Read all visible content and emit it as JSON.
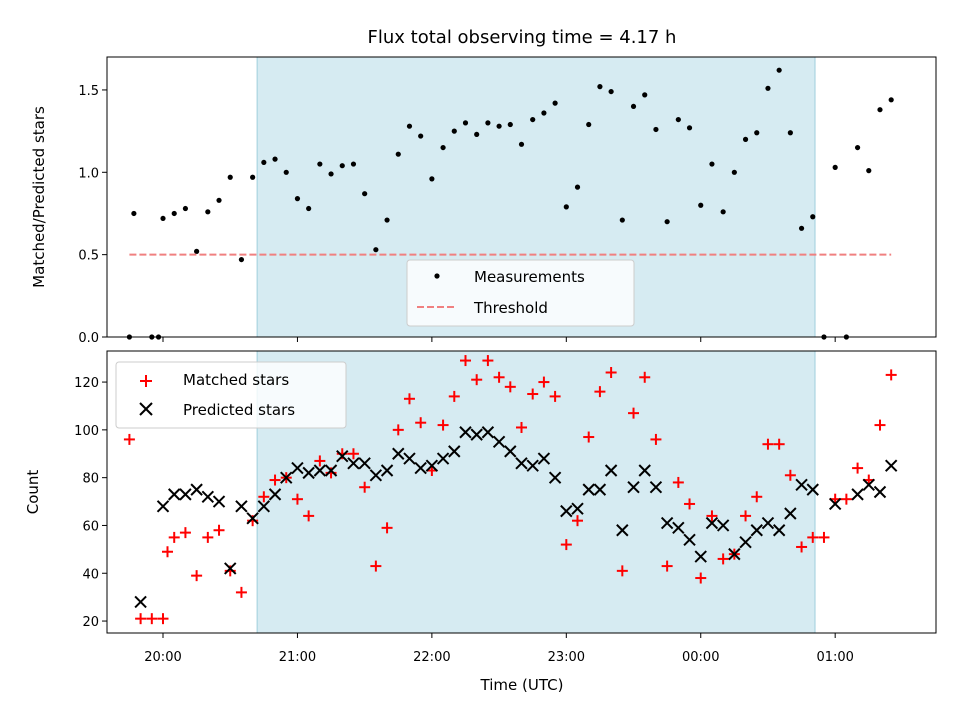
{
  "chart_data": [
    {
      "type": "scatter",
      "title": "Flux total observing time = 4.17 h",
      "ylabel": "Matched/Predicted stars",
      "xlabel": "",
      "x_ticks": [
        "20:00",
        "21:00",
        "22:00",
        "23:00",
        "00:00",
        "01:00"
      ],
      "xlim": [
        "19:35",
        "01:45"
      ],
      "ylim": [
        0,
        1.7
      ],
      "y_ticks": [
        0.0,
        0.5,
        1.0,
        1.5
      ],
      "y_tick_labels": [
        "0.0",
        "0.5",
        "1.0",
        "1.5"
      ],
      "shaded_interval": [
        "20:42",
        "00:51"
      ],
      "shade_color": "#add8e6",
      "legend": {
        "position": "bottom-center",
        "entries": [
          "Measurements",
          "Threshold"
        ]
      },
      "series": [
        {
          "name": "Measurements",
          "marker": "point",
          "color": "#000000",
          "points": [
            [
              "19:45",
              0.0
            ],
            [
              "19:47",
              0.75
            ],
            [
              "19:55",
              0.0
            ],
            [
              "19:58",
              0.0
            ],
            [
              "20:00",
              0.72
            ],
            [
              "20:05",
              0.75
            ],
            [
              "20:10",
              0.78
            ],
            [
              "20:15",
              0.52
            ],
            [
              "20:20",
              0.76
            ],
            [
              "20:25",
              0.83
            ],
            [
              "20:30",
              0.97
            ],
            [
              "20:35",
              0.47
            ],
            [
              "20:40",
              0.97
            ],
            [
              "20:45",
              1.06
            ],
            [
              "20:50",
              1.08
            ],
            [
              "20:55",
              1.0
            ],
            [
              "21:00",
              0.84
            ],
            [
              "21:05",
              0.78
            ],
            [
              "21:10",
              1.05
            ],
            [
              "21:15",
              0.99
            ],
            [
              "21:20",
              1.04
            ],
            [
              "21:25",
              1.05
            ],
            [
              "21:30",
              0.87
            ],
            [
              "21:35",
              0.53
            ],
            [
              "21:40",
              0.71
            ],
            [
              "21:45",
              1.11
            ],
            [
              "21:50",
              1.28
            ],
            [
              "21:55",
              1.22
            ],
            [
              "22:00",
              0.96
            ],
            [
              "22:05",
              1.15
            ],
            [
              "22:10",
              1.25
            ],
            [
              "22:15",
              1.3
            ],
            [
              "22:20",
              1.23
            ],
            [
              "22:25",
              1.3
            ],
            [
              "22:30",
              1.28
            ],
            [
              "22:35",
              1.29
            ],
            [
              "22:40",
              1.17
            ],
            [
              "22:45",
              1.32
            ],
            [
              "22:50",
              1.36
            ],
            [
              "22:55",
              1.42
            ],
            [
              "23:00",
              0.79
            ],
            [
              "23:05",
              0.91
            ],
            [
              "23:10",
              1.29
            ],
            [
              "23:15",
              1.52
            ],
            [
              "23:20",
              1.49
            ],
            [
              "23:25",
              0.71
            ],
            [
              "23:30",
              1.4
            ],
            [
              "23:35",
              1.47
            ],
            [
              "23:40",
              1.26
            ],
            [
              "23:45",
              0.7
            ],
            [
              "23:50",
              1.32
            ],
            [
              "23:55",
              1.27
            ],
            [
              "00:00",
              0.8
            ],
            [
              "00:05",
              1.05
            ],
            [
              "00:10",
              0.76
            ],
            [
              "00:15",
              1.0
            ],
            [
              "00:20",
              1.2
            ],
            [
              "00:25",
              1.24
            ],
            [
              "00:30",
              1.51
            ],
            [
              "00:35",
              1.62
            ],
            [
              "00:40",
              1.24
            ],
            [
              "00:45",
              0.66
            ],
            [
              "00:50",
              0.73
            ],
            [
              "00:55",
              0.0
            ],
            [
              "01:00",
              1.03
            ],
            [
              "01:05",
              0.0
            ],
            [
              "01:10",
              1.15
            ],
            [
              "01:15",
              1.01
            ],
            [
              "01:20",
              1.38
            ],
            [
              "01:25",
              1.44
            ]
          ]
        },
        {
          "name": "Threshold",
          "style": "dashed",
          "color": "#f08080",
          "points": [
            [
              "19:45",
              0.5
            ],
            [
              "01:25",
              0.5
            ]
          ]
        }
      ]
    },
    {
      "type": "scatter",
      "title": "",
      "ylabel": "Count",
      "xlabel": "Time (UTC)",
      "x_ticks": [
        "20:00",
        "21:00",
        "22:00",
        "23:00",
        "00:00",
        "01:00"
      ],
      "xlim": [
        "19:35",
        "01:45"
      ],
      "ylim": [
        15,
        133
      ],
      "y_ticks": [
        20,
        40,
        60,
        80,
        100,
        120
      ],
      "y_tick_labels": [
        "20",
        "40",
        "60",
        "80",
        "100",
        "120"
      ],
      "shaded_interval": [
        "20:42",
        "00:51"
      ],
      "shade_color": "#add8e6",
      "legend": {
        "position": "top-left",
        "entries": [
          "Matched stars",
          "Predicted stars"
        ]
      },
      "series": [
        {
          "name": "Matched stars",
          "marker": "plus",
          "color": "#ff0000",
          "points": [
            [
              "19:45",
              96
            ],
            [
              "19:50",
              21
            ],
            [
              "19:55",
              21
            ],
            [
              "20:00",
              21
            ],
            [
              "20:02",
              49
            ],
            [
              "20:05",
              55
            ],
            [
              "20:10",
              57
            ],
            [
              "20:15",
              39
            ],
            [
              "20:20",
              55
            ],
            [
              "20:25",
              58
            ],
            [
              "20:30",
              41
            ],
            [
              "20:35",
              32
            ],
            [
              "20:40",
              62
            ],
            [
              "20:45",
              72
            ],
            [
              "20:50",
              79
            ],
            [
              "20:55",
              80
            ],
            [
              "21:00",
              71
            ],
            [
              "21:05",
              64
            ],
            [
              "21:10",
              87
            ],
            [
              "21:15",
              82
            ],
            [
              "21:20",
              90
            ],
            [
              "21:25",
              90
            ],
            [
              "21:30",
              76
            ],
            [
              "21:35",
              43
            ],
            [
              "21:40",
              59
            ],
            [
              "21:45",
              100
            ],
            [
              "21:50",
              113
            ],
            [
              "21:55",
              103
            ],
            [
              "22:00",
              83
            ],
            [
              "22:05",
              102
            ],
            [
              "22:10",
              114
            ],
            [
              "22:15",
              129
            ],
            [
              "22:20",
              121
            ],
            [
              "22:25",
              129
            ],
            [
              "22:30",
              122
            ],
            [
              "22:35",
              118
            ],
            [
              "22:40",
              101
            ],
            [
              "22:45",
              115
            ],
            [
              "22:50",
              120
            ],
            [
              "22:55",
              114
            ],
            [
              "23:00",
              52
            ],
            [
              "23:05",
              62
            ],
            [
              "23:10",
              97
            ],
            [
              "23:15",
              116
            ],
            [
              "23:20",
              124
            ],
            [
              "23:25",
              41
            ],
            [
              "23:30",
              107
            ],
            [
              "23:35",
              122
            ],
            [
              "23:40",
              96
            ],
            [
              "23:45",
              43
            ],
            [
              "23:50",
              78
            ],
            [
              "23:55",
              69
            ],
            [
              "00:00",
              38
            ],
            [
              "00:05",
              64
            ],
            [
              "00:10",
              46
            ],
            [
              "00:15",
              48
            ],
            [
              "00:20",
              64
            ],
            [
              "00:25",
              72
            ],
            [
              "00:30",
              94
            ],
            [
              "00:35",
              94
            ],
            [
              "00:40",
              81
            ],
            [
              "00:45",
              51
            ],
            [
              "00:50",
              55
            ],
            [
              "00:55",
              55
            ],
            [
              "01:00",
              71
            ],
            [
              "01:05",
              71
            ],
            [
              "01:10",
              84
            ],
            [
              "01:15",
              79
            ],
            [
              "01:20",
              102
            ],
            [
              "01:25",
              123
            ]
          ]
        },
        {
          "name": "Predicted stars",
          "marker": "x",
          "color": "#000000",
          "points": [
            [
              "19:50",
              28
            ],
            [
              "20:00",
              68
            ],
            [
              "20:05",
              73
            ],
            [
              "20:10",
              73
            ],
            [
              "20:15",
              75
            ],
            [
              "20:20",
              72
            ],
            [
              "20:25",
              70
            ],
            [
              "20:30",
              42
            ],
            [
              "20:35",
              68
            ],
            [
              "20:40",
              63
            ],
            [
              "20:45",
              68
            ],
            [
              "20:50",
              73
            ],
            [
              "20:55",
              80
            ],
            [
              "21:00",
              84
            ],
            [
              "21:05",
              82
            ],
            [
              "21:10",
              83
            ],
            [
              "21:15",
              83
            ],
            [
              "21:20",
              89
            ],
            [
              "21:25",
              86
            ],
            [
              "21:30",
              86
            ],
            [
              "21:35",
              81
            ],
            [
              "21:40",
              83
            ],
            [
              "21:45",
              90
            ],
            [
              "21:50",
              88
            ],
            [
              "21:55",
              84
            ],
            [
              "22:00",
              85
            ],
            [
              "22:05",
              88
            ],
            [
              "22:10",
              91
            ],
            [
              "22:15",
              99
            ],
            [
              "22:20",
              98
            ],
            [
              "22:25",
              99
            ],
            [
              "22:30",
              95
            ],
            [
              "22:35",
              91
            ],
            [
              "22:40",
              86
            ],
            [
              "22:45",
              85
            ],
            [
              "22:50",
              88
            ],
            [
              "22:55",
              80
            ],
            [
              "23:00",
              66
            ],
            [
              "23:05",
              67
            ],
            [
              "23:10",
              75
            ],
            [
              "23:15",
              75
            ],
            [
              "23:20",
              83
            ],
            [
              "23:25",
              58
            ],
            [
              "23:30",
              76
            ],
            [
              "23:35",
              83
            ],
            [
              "23:40",
              76
            ],
            [
              "23:45",
              61
            ],
            [
              "23:50",
              59
            ],
            [
              "23:55",
              54
            ],
            [
              "00:00",
              47
            ],
            [
              "00:05",
              61
            ],
            [
              "00:10",
              60
            ],
            [
              "00:15",
              48
            ],
            [
              "00:20",
              53
            ],
            [
              "00:25",
              58
            ],
            [
              "00:30",
              61
            ],
            [
              "00:35",
              58
            ],
            [
              "00:40",
              65
            ],
            [
              "00:45",
              77
            ],
            [
              "00:50",
              75
            ],
            [
              "01:00",
              69
            ],
            [
              "01:10",
              73
            ],
            [
              "01:15",
              77
            ],
            [
              "01:20",
              74
            ],
            [
              "01:25",
              85
            ]
          ]
        }
      ]
    }
  ]
}
